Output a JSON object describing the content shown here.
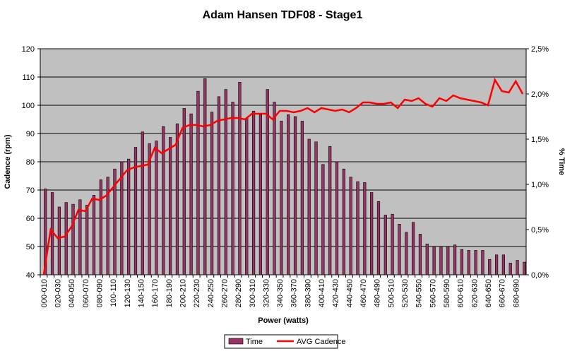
{
  "chart_data": {
    "type": "bar-line",
    "title": "Adam Hansen TDF08 - Stage1",
    "x_label": "Power (watts)",
    "y_label": "Cadence (rpm)",
    "y2_label": "% Time",
    "categories": [
      "000-010",
      null,
      "020-030",
      null,
      "040-050",
      null,
      "060-070",
      null,
      "080-090",
      null,
      "100-110",
      null,
      "120-130",
      null,
      "140-150",
      null,
      "160-170",
      null,
      "180-190",
      null,
      "200-210",
      null,
      "220-230",
      null,
      "240-250",
      null,
      "260-270",
      null,
      "280-290",
      null,
      "300-310",
      null,
      "320-330",
      null,
      "340-350",
      null,
      "360-370",
      null,
      "380-390",
      null,
      "400-410",
      null,
      "420-430",
      null,
      "440-450",
      null,
      "460-470",
      null,
      "480-490",
      null,
      "500-510",
      null,
      "520-530",
      null,
      "540-550",
      null,
      "560-570",
      null,
      "580-590",
      null,
      "600-610",
      null,
      "620-630",
      null,
      "640-650",
      null,
      "660-670",
      null,
      "680-690",
      null
    ],
    "series": [
      {
        "name": "Time",
        "type": "bar",
        "axis": "y2",
        "color": "#993366",
        "values": [
          0.95,
          0.91,
          0.75,
          0.8,
          0.78,
          0.83,
          0.77,
          0.88,
          1.05,
          1.08,
          1.17,
          1.25,
          1.28,
          1.41,
          1.58,
          1.45,
          1.48,
          1.64,
          1.52,
          1.67,
          1.84,
          1.78,
          2.03,
          2.17,
          1.8,
          1.97,
          2.05,
          1.91,
          2.13,
          1.73,
          1.81,
          1.77,
          2.05,
          1.91,
          1.7,
          1.77,
          1.75,
          1.7,
          1.5,
          1.47,
          1.22,
          1.42,
          1.25,
          1.17,
          1.08,
          1.03,
          1.02,
          0.91,
          0.81,
          0.66,
          0.67,
          0.56,
          0.47,
          0.58,
          0.45,
          0.34,
          0.31,
          0.31,
          0.31,
          0.33,
          0.28,
          0.27,
          0.27,
          0.27,
          0.17,
          0.22,
          0.22,
          0.13,
          0.16,
          0.14
        ]
      },
      {
        "name": "AVG Cadence",
        "type": "line",
        "axis": "y",
        "color": "#ff0000",
        "values": [
          40,
          56,
          53,
          53.5,
          57,
          63,
          62.5,
          67,
          66.5,
          68,
          71,
          74,
          77,
          78,
          78.5,
          79,
          85,
          83,
          84.5,
          86,
          92,
          93,
          93,
          92.5,
          93,
          94.5,
          95,
          95.5,
          95.5,
          95,
          97,
          97,
          97,
          95,
          98,
          98,
          97.5,
          98,
          99,
          97.5,
          99,
          98.5,
          98,
          98.5,
          97.5,
          99,
          101,
          101,
          100.5,
          100.5,
          101,
          99,
          102,
          101.5,
          102.5,
          100.5,
          99.5,
          102.5,
          101.5,
          103.5,
          102.5,
          102,
          101.5,
          101,
          100,
          109,
          105,
          104.5,
          108.5,
          104
        ]
      }
    ],
    "ylim": [
      40,
      120
    ],
    "yticks": [
      40,
      50,
      60,
      70,
      80,
      90,
      100,
      110,
      120
    ],
    "y2lim": [
      0,
      2.5
    ],
    "y2ticks": [
      {
        "value": 0,
        "label": "0,0%"
      },
      {
        "value": 0.5,
        "label": "0,5%"
      },
      {
        "value": 1,
        "label": "1,0%"
      },
      {
        "value": 1.5,
        "label": "1,5%"
      },
      {
        "value": 2,
        "label": "2,0%"
      },
      {
        "value": 2.5,
        "label": "2,5%"
      }
    ],
    "grid": true,
    "legend": "bottom"
  }
}
